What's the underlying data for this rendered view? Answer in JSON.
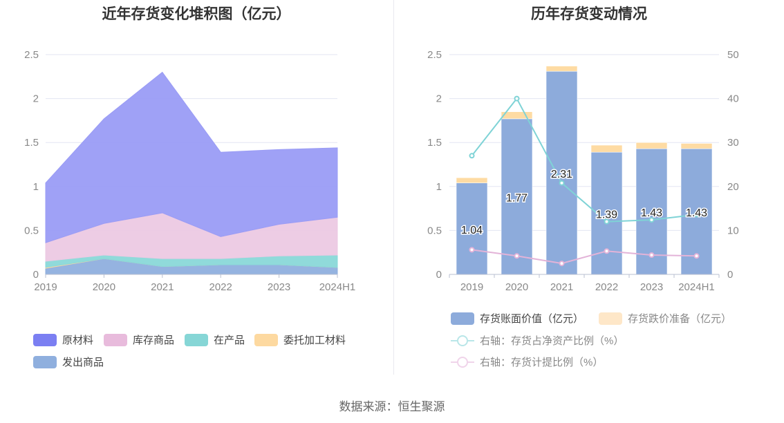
{
  "source": "数据来源：恒生聚源",
  "left_chart": {
    "title": "近年存货变化堆积图（亿元）",
    "legend": [
      "原材料",
      "库存商品",
      "在产品",
      "委托加工材料",
      "发出商品"
    ]
  },
  "right_chart": {
    "title": "历年存货变动情况",
    "legend": [
      "存货账面价值（亿元）",
      "存货跌价准备（亿元）",
      "右轴：存货占净资产比例（%）",
      "右轴：存货计提比例（%）"
    ]
  },
  "chart_data": [
    {
      "type": "area",
      "stacked": true,
      "title": "近年存货变化堆积图（亿元）",
      "categories": [
        "2019",
        "2020",
        "2021",
        "2022",
        "2023",
        "2024H1"
      ],
      "ylim": [
        0,
        2.5
      ],
      "yticks": [
        "0",
        "0.5",
        "1",
        "1.5",
        "2",
        "2.5"
      ],
      "grid": true,
      "legend_position": "bottom",
      "series": [
        {
          "name": "发出商品",
          "color": "#8fafde",
          "values": [
            0.07,
            0.18,
            0.09,
            0.11,
            0.11,
            0.08
          ]
        },
        {
          "name": "委托加工材料",
          "color": "#fdd9a0",
          "values": [
            0.01,
            0.0,
            0.0,
            0.0,
            0.0,
            0.0
          ]
        },
        {
          "name": "在产品",
          "color": "#8ad8d8",
          "values": [
            0.07,
            0.04,
            0.09,
            0.07,
            0.1,
            0.14
          ]
        },
        {
          "name": "库存商品",
          "color": "#ecc9e3",
          "values": [
            0.21,
            0.36,
            0.52,
            0.25,
            0.36,
            0.43
          ]
        },
        {
          "name": "原材料",
          "color": "#9a9cf5",
          "values": [
            0.68,
            1.19,
            1.6,
            0.96,
            0.85,
            0.79
          ]
        }
      ]
    },
    {
      "type": "bar",
      "stacked": true,
      "title": "历年存货变动情况",
      "categories": [
        "2019",
        "2020",
        "2021",
        "2022",
        "2023",
        "2024H1"
      ],
      "ylim": [
        0,
        2.5
      ],
      "yticks": [
        "0",
        "0.5",
        "1",
        "1.5",
        "2",
        "2.5"
      ],
      "y2lim": [
        0,
        50
      ],
      "y2ticks": [
        "0",
        "10",
        "20",
        "30",
        "40",
        "50"
      ],
      "grid": true,
      "legend_position": "bottom",
      "series": [
        {
          "name": "存货账面价值（亿元）",
          "type": "bar",
          "color": "#8dabdb",
          "values": [
            1.04,
            1.77,
            2.31,
            1.39,
            1.43,
            1.43
          ],
          "labels": [
            "1.04",
            "1.77",
            "2.31",
            "1.39",
            "1.43",
            "1.43"
          ]
        },
        {
          "name": "存货跌价准备（亿元）",
          "type": "bar",
          "color": "#fedba3",
          "values": [
            0.06,
            0.08,
            0.06,
            0.08,
            0.07,
            0.06
          ]
        },
        {
          "name": "右轴：存货占净资产比例（%）",
          "type": "line",
          "axis": "right",
          "color": "#7fd3d6",
          "values": [
            27.0,
            40.0,
            20.8,
            12.0,
            12.4,
            13.6
          ]
        },
        {
          "name": "右轴：存货计提比例（%）",
          "type": "line",
          "axis": "right",
          "color": "#e3b3d8",
          "values": [
            5.6,
            4.2,
            2.5,
            5.3,
            4.4,
            4.2
          ]
        }
      ]
    }
  ]
}
